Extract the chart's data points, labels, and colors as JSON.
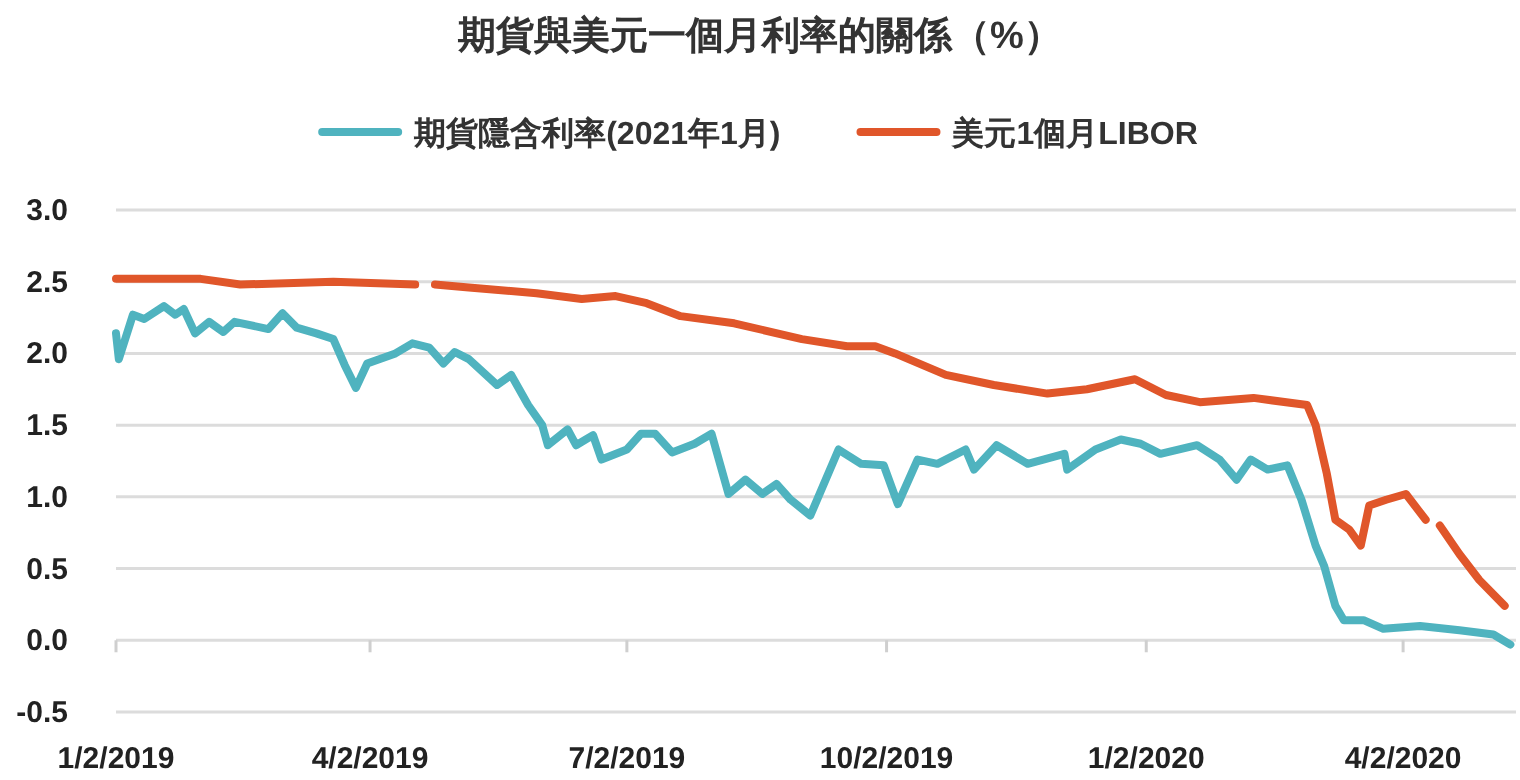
{
  "chart_data": {
    "type": "line",
    "title": "期貨與美元一個月利率的關係（%）",
    "xlim": [
      "2019-01-02",
      "2020-05-12"
    ],
    "xticks": [
      {
        "value": "2019-01-02",
        "label": "1/2/2019"
      },
      {
        "value": "2019-04-02",
        "label": "4/2/2019"
      },
      {
        "value": "2019-07-02",
        "label": "7/2/2019"
      },
      {
        "value": "2019-10-02",
        "label": "10/2/2019"
      },
      {
        "value": "2020-01-02",
        "label": "1/2/2020"
      },
      {
        "value": "2020-04-02",
        "label": "4/2/2020"
      }
    ],
    "ylim": [
      -0.5,
      3.0
    ],
    "yticks": [
      {
        "value": -0.5,
        "label": "-0.5"
      },
      {
        "value": 0,
        "label": "0.0"
      },
      {
        "value": 0.5,
        "label": "0.5"
      },
      {
        "value": 1,
        "label": "1.0"
      },
      {
        "value": 1.5,
        "label": "1.5"
      },
      {
        "value": 2,
        "label": "2.0"
      },
      {
        "value": 2.5,
        "label": "2.5"
      },
      {
        "value": 3,
        "label": "3.0"
      }
    ],
    "grid": "y",
    "legend": "top",
    "series": [
      {
        "name": "期貨隱含利率(2021年1月)",
        "color": "#4fb3bf",
        "x": [
          "2019-01-02",
          "2019-01-03",
          "2019-01-08",
          "2019-01-12",
          "2019-01-19",
          "2019-01-23",
          "2019-01-26",
          "2019-01-30",
          "2019-02-04",
          "2019-02-09",
          "2019-02-13",
          "2019-02-25",
          "2019-03-02",
          "2019-03-07",
          "2019-03-14",
          "2019-03-20",
          "2019-03-24",
          "2019-03-28",
          "2019-04-01",
          "2019-04-11",
          "2019-04-17",
          "2019-04-23",
          "2019-04-28",
          "2019-05-02",
          "2019-05-07",
          "2019-05-17",
          "2019-05-22",
          "2019-05-28",
          "2019-06-02",
          "2019-06-04",
          "2019-06-11",
          "2019-06-14",
          "2019-06-20",
          "2019-06-23",
          "2019-07-02",
          "2019-07-07",
          "2019-07-12",
          "2019-07-18",
          "2019-07-26",
          "2019-08-01",
          "2019-08-07",
          "2019-08-13",
          "2019-08-19",
          "2019-08-24",
          "2019-08-29",
          "2019-09-05",
          "2019-09-15",
          "2019-09-23",
          "2019-10-01",
          "2019-10-06",
          "2019-10-13",
          "2019-10-20",
          "2019-10-30",
          "2019-11-02",
          "2019-11-10",
          "2019-11-21",
          "2019-12-04",
          "2019-12-05",
          "2019-12-15",
          "2019-12-24",
          "2019-12-31",
          "2020-01-07",
          "2020-01-20",
          "2020-01-28",
          "2020-02-03",
          "2020-02-08",
          "2020-02-14",
          "2020-02-21",
          "2020-02-26",
          "2020-03-02",
          "2020-03-05",
          "2020-03-09",
          "2020-03-12",
          "2020-03-19",
          "2020-03-26",
          "2020-04-08",
          "2020-04-22",
          "2020-05-04",
          "2020-05-10"
        ],
        "values": [
          2.14,
          1.96,
          2.27,
          2.24,
          2.33,
          2.27,
          2.31,
          2.14,
          2.22,
          2.15,
          2.22,
          2.17,
          2.28,
          2.18,
          2.14,
          2.1,
          1.92,
          1.76,
          1.93,
          2.0,
          2.07,
          2.04,
          1.93,
          2.01,
          1.96,
          1.78,
          1.85,
          1.64,
          1.5,
          1.36,
          1.47,
          1.36,
          1.43,
          1.26,
          1.33,
          1.44,
          1.44,
          1.31,
          1.37,
          1.44,
          1.02,
          1.12,
          1.02,
          1.09,
          0.98,
          0.87,
          1.33,
          1.23,
          1.22,
          0.95,
          1.26,
          1.23,
          1.33,
          1.19,
          1.36,
          1.23,
          1.3,
          1.19,
          1.33,
          1.4,
          1.37,
          1.3,
          1.36,
          1.26,
          1.12,
          1.26,
          1.19,
          1.22,
          0.98,
          0.66,
          0.52,
          0.24,
          0.14,
          0.14,
          0.08,
          0.1,
          0.07,
          0.04,
          -0.03
        ]
      },
      {
        "name": "美元1個月LIBOR",
        "color": "#e0562a",
        "x": [
          "2019-01-02",
          "2019-02-01",
          "2019-02-15",
          "2019-03-20",
          "2019-04-18",
          "2019-04-20",
          "2019-04-25",
          "2019-05-07",
          "2019-05-31",
          "2019-06-16",
          "2019-06-28",
          "2019-07-09",
          "2019-07-21",
          "2019-08-09",
          "2019-09-02",
          "2019-09-18",
          "2019-09-28",
          "2019-10-05",
          "2019-10-23",
          "2019-11-09",
          "2019-11-28",
          "2019-12-12",
          "2019-12-29",
          "2020-01-09",
          "2020-01-21",
          "2020-02-09",
          "2020-02-28",
          "2020-03-02",
          "2020-03-06",
          "2020-03-09",
          "2020-03-14",
          "2020-03-18",
          "2020-03-21",
          "2020-03-27",
          "2020-04-03",
          "2020-04-10",
          "2020-04-13",
          "2020-04-15",
          "2020-04-22",
          "2020-04-29",
          "2020-05-08"
        ],
        "values": [
          2.52,
          2.52,
          2.48,
          2.5,
          2.48,
          null,
          2.48,
          2.46,
          2.42,
          2.38,
          2.4,
          2.35,
          2.26,
          2.21,
          2.1,
          2.05,
          2.05,
          2.0,
          1.85,
          1.78,
          1.72,
          1.75,
          1.82,
          1.71,
          1.66,
          1.69,
          1.64,
          1.5,
          1.16,
          0.84,
          0.77,
          0.66,
          0.94,
          0.98,
          1.02,
          0.84,
          null,
          0.8,
          0.6,
          0.42,
          0.24
        ]
      }
    ]
  }
}
